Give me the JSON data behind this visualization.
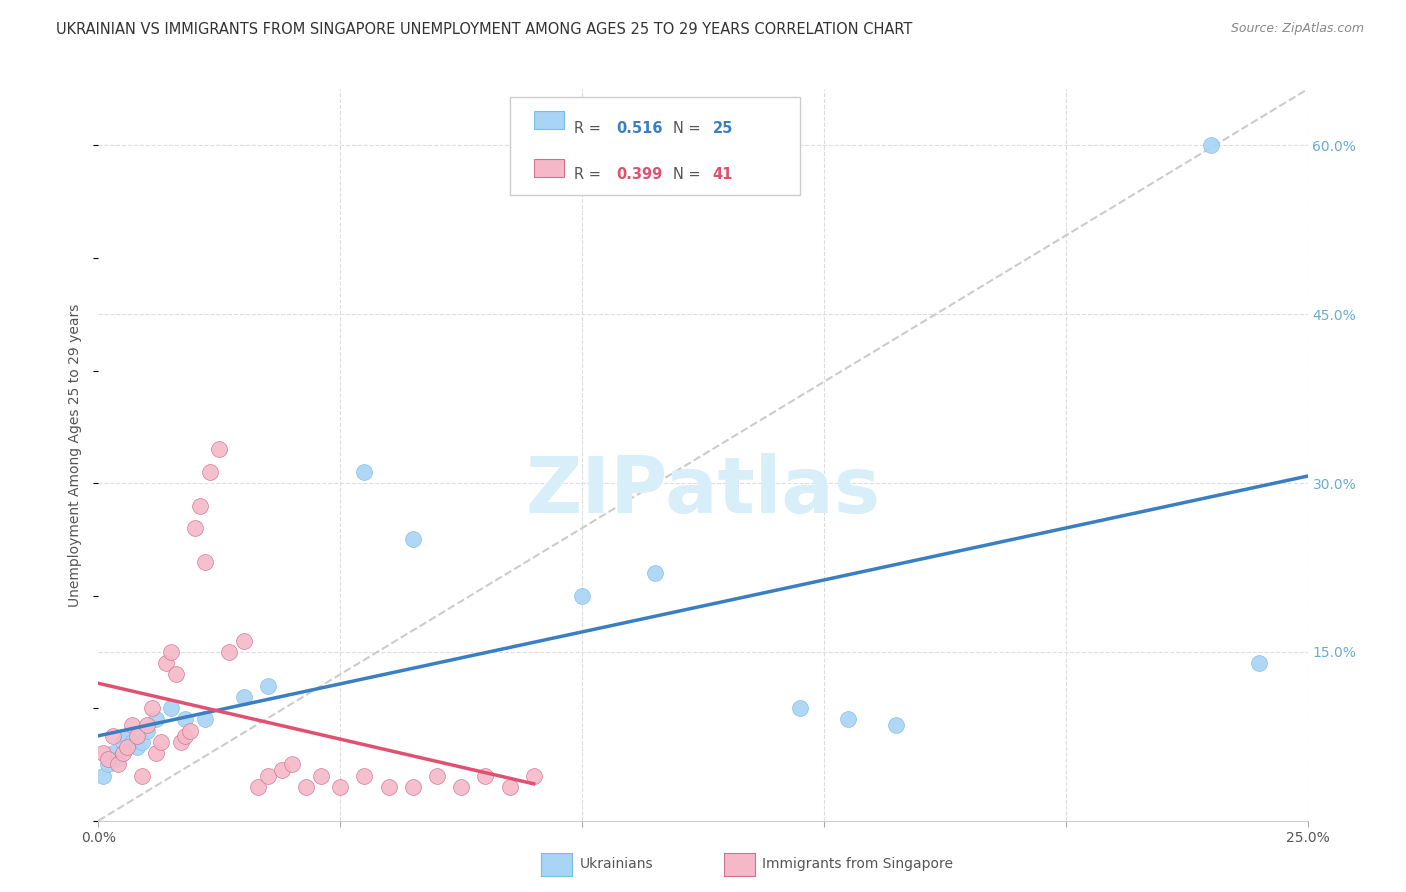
{
  "title": "UKRAINIAN VS IMMIGRANTS FROM SINGAPORE UNEMPLOYMENT AMONG AGES 25 TO 29 YEARS CORRELATION CHART",
  "source": "Source: ZipAtlas.com",
  "ylabel": "Unemployment Among Ages 25 to 29 years",
  "xlim": [
    0.0,
    0.25
  ],
  "ylim": [
    0.0,
    0.65
  ],
  "blue_color": "#a8d4f5",
  "pink_color": "#f5b8c8",
  "trend_blue_color": "#3a7fc1",
  "trend_pink_color": "#e05070",
  "right_tick_color": "#6aaccf",
  "watermark": "ZIPatlas",
  "watermark_color": "#d8eef8",
  "blue_r": "0.516",
  "blue_n": "25",
  "pink_r": "0.399",
  "pink_n": "41",
  "blue_scatter_x": [
    0.001,
    0.002,
    0.003,
    0.004,
    0.005,
    0.006,
    0.007,
    0.008,
    0.009,
    0.01,
    0.012,
    0.015,
    0.018,
    0.022,
    0.03,
    0.055,
    0.065,
    0.1,
    0.115,
    0.145,
    0.155,
    0.165,
    0.23,
    0.24,
    0.035
  ],
  "blue_scatter_y": [
    0.04,
    0.05,
    0.06,
    0.055,
    0.07,
    0.075,
    0.07,
    0.065,
    0.07,
    0.08,
    0.09,
    0.1,
    0.09,
    0.09,
    0.11,
    0.31,
    0.25,
    0.2,
    0.22,
    0.1,
    0.09,
    0.085,
    0.6,
    0.14,
    0.12
  ],
  "pink_scatter_x": [
    0.001,
    0.002,
    0.003,
    0.004,
    0.005,
    0.006,
    0.007,
    0.008,
    0.009,
    0.01,
    0.011,
    0.012,
    0.013,
    0.014,
    0.015,
    0.016,
    0.017,
    0.018,
    0.019,
    0.02,
    0.021,
    0.022,
    0.023,
    0.025,
    0.027,
    0.03,
    0.033,
    0.035,
    0.038,
    0.04,
    0.043,
    0.046,
    0.05,
    0.055,
    0.06,
    0.065,
    0.07,
    0.075,
    0.08,
    0.085,
    0.09
  ],
  "pink_scatter_y": [
    0.06,
    0.055,
    0.075,
    0.05,
    0.06,
    0.065,
    0.085,
    0.075,
    0.04,
    0.085,
    0.1,
    0.06,
    0.07,
    0.14,
    0.15,
    0.13,
    0.07,
    0.075,
    0.08,
    0.26,
    0.28,
    0.23,
    0.31,
    0.33,
    0.15,
    0.16,
    0.03,
    0.04,
    0.045,
    0.05,
    0.03,
    0.04,
    0.03,
    0.04,
    0.03,
    0.03,
    0.04,
    0.03,
    0.04,
    0.03,
    0.04
  ]
}
